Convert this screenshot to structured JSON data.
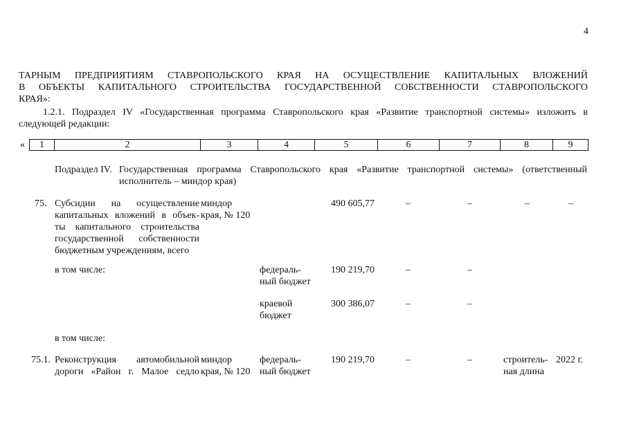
{
  "page_number": "4",
  "intro": {
    "line1": "ТАРНЫМ ПРЕДПРИЯТИЯМ СТАВРОПОЛЬСКОГО КРАЯ НА ОСУЩЕСТВЛЕНИЕ КАПИТАЛЬНЫХ ВЛОЖЕНИЙ",
    "line2": "В ОБЪЕКТЫ КАПИТАЛЬНОГО СТРОИТЕЛЬСТВА ГОСУДАРСТВЕННОЙ СОБСТВЕННОСТИ СТАВРОПОЛЬСКОГО",
    "line3": "КРАЯ»:",
    "para_line1": "1.2.1. Подраздел IV «Государственная программа Ставропольского края «Развитие транспортной системы» изложить в",
    "para_line2": "следующей редакции:"
  },
  "table_header": {
    "open_quote": "«",
    "columns": [
      "1",
      "2",
      "3",
      "4",
      "5",
      "6",
      "7",
      "8",
      "9"
    ]
  },
  "subsection": {
    "label": "Подраздел IV.",
    "line1": "Государственная программа Ставропольского края «Развитие транспортной системы» (ответственный",
    "line2": "исполнитель – миндор края)"
  },
  "rows": [
    {
      "num": "75.",
      "name": [
        "Субсидии на осуществление",
        "капитальных вложений в объек-",
        "ты капитального строительства",
        "государственной собственности",
        "бюджетным учреждениям, всего"
      ],
      "exec": [
        "миндор",
        "края, № 120"
      ],
      "source": [],
      "c5": "490 605,77",
      "c6": "–",
      "c7": "–",
      "c8": "–",
      "c9": "–"
    },
    {
      "num": "",
      "name": [
        "в том числе:"
      ],
      "exec": [],
      "source": [
        "федераль-",
        "ный бюджет"
      ],
      "c5": "190 219,70",
      "c6": "–",
      "c7": "–",
      "c8": "",
      "c9": ""
    },
    {
      "num": "",
      "name": [],
      "exec": [],
      "source": [
        "краевой",
        "бюджет"
      ],
      "c5": "300 386,07",
      "c6": "–",
      "c7": "–",
      "c8": "",
      "c9": ""
    },
    {
      "num": "",
      "name": [
        "в том числе:"
      ],
      "exec": [],
      "source": [],
      "c5": "",
      "c6": "",
      "c7": "",
      "c8": "",
      "c9": ""
    },
    {
      "num": "75.1.",
      "name": [
        "Реконструкция автомобильной",
        "дороги «Район г. Малое седло"
      ],
      "exec": [
        "миндор",
        "края, № 120"
      ],
      "source": [
        "федераль-",
        "ный бюджет"
      ],
      "c5": "190 219,70",
      "c6": "–",
      "c7": "–",
      "c8": [
        "строитель-",
        "ная длина"
      ],
      "c9": "2022 г."
    }
  ]
}
